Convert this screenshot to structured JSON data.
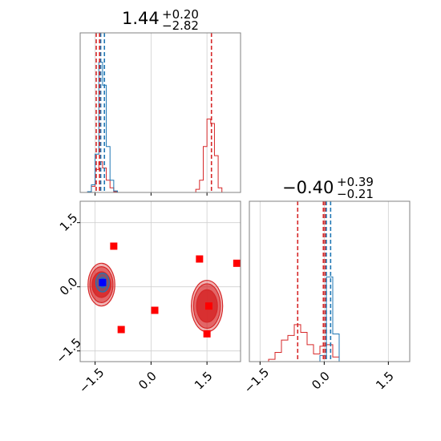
{
  "chart_data": {
    "type": "corner",
    "parameters": [
      {
        "title": {
          "median": "1.44",
          "upper": "+0.20",
          "lower": "−2.82"
        },
        "range": [
          -1.9,
          2.4
        ],
        "ticks": [
          {
            "value": -1.5,
            "label": "−1.5"
          },
          {
            "value": 0.0,
            "label": "0.0"
          },
          {
            "value": 1.5,
            "label": "1.5"
          }
        ]
      },
      {
        "title": {
          "median": "−0.40",
          "upper": "+0.39",
          "lower": "−0.21"
        },
        "range": [
          -1.75,
          2.0
        ],
        "ticks": [
          {
            "value": -1.5,
            "label": "−1.5"
          },
          {
            "value": 0.0,
            "label": "0.0"
          },
          {
            "value": 1.5,
            "label": "1.5"
          }
        ]
      }
    ],
    "series": [
      {
        "color": "#1f77b4"
      },
      {
        "color": "#d62728"
      }
    ],
    "marginal_x": {
      "bins": [
        -1.9,
        -1.8,
        -1.7,
        -1.6,
        -1.5,
        -1.4,
        -1.3,
        -1.2,
        -1.1,
        -1.0,
        -0.9,
        -0.8,
        -0.7,
        -0.6,
        -0.5,
        -0.4,
        -0.3,
        -0.2,
        -0.1,
        0.0,
        0.1,
        0.2,
        0.3,
        0.4,
        0.5,
        0.6,
        0.7,
        0.8,
        0.9,
        1.0,
        1.1,
        1.2,
        1.3,
        1.4,
        1.5,
        1.6,
        1.7,
        1.8,
        1.9,
        2.0,
        2.1,
        2.2,
        2.3,
        2.4
      ],
      "blue": [
        0,
        0,
        0.005,
        0.05,
        0.25,
        0.85,
        0.7,
        0.3,
        0.08,
        0.01,
        0,
        0,
        0,
        0,
        0,
        0,
        0,
        0,
        0,
        0,
        0,
        0,
        0,
        0,
        0,
        0,
        0,
        0,
        0,
        0,
        0,
        0,
        0,
        0,
        0,
        0,
        0,
        0,
        0,
        0,
        0,
        0,
        0
      ],
      "red": [
        0,
        0,
        0.005,
        0.04,
        0.15,
        0.2,
        0.16,
        0.08,
        0.03,
        0.005,
        0,
        0,
        0,
        0,
        0,
        0,
        0,
        0,
        0,
        0,
        0,
        0,
        0,
        0,
        0,
        0,
        0,
        0,
        0,
        0,
        0,
        0.02,
        0.08,
        0.3,
        0.48,
        0.45,
        0.24,
        0.03,
        0,
        0,
        0,
        0,
        0
      ],
      "quantiles_blue": [
        -1.35,
        -1.25
      ],
      "quantiles_red": [
        -1.47,
        -1.38,
        1.62
      ]
    },
    "marginal_y": {
      "bins": [
        -1.75,
        -1.6,
        -1.45,
        -1.3,
        -1.15,
        -1.0,
        -0.85,
        -0.7,
        -0.55,
        -0.4,
        -0.25,
        -0.1,
        0.05,
        0.2,
        0.35,
        0.5,
        0.65,
        0.8,
        0.95,
        1.1,
        1.25,
        1.4,
        1.55,
        1.7,
        1.85,
        2.0
      ],
      "blue": [
        0,
        0,
        0,
        0,
        0,
        0,
        0,
        0,
        0,
        0,
        0,
        0.04,
        0.55,
        0.18,
        0,
        0,
        0,
        0,
        0,
        0,
        0,
        0,
        0,
        0,
        0
      ],
      "red": [
        0,
        0,
        0,
        0.015,
        0.06,
        0.14,
        0.17,
        0.24,
        0.19,
        0.11,
        0.05,
        0.1,
        0.11,
        0.03,
        0,
        0,
        0,
        0,
        0,
        0,
        0,
        0,
        0,
        0,
        0
      ],
      "quantiles_blue": [
        0.05,
        0.15
      ],
      "quantiles_red": [
        -0.62,
        -0.02,
        0.02
      ]
    },
    "joint": {
      "blue_mode": {
        "x": -1.3,
        "y": 0.1
      },
      "contours": [
        {
          "color": "#d62728",
          "cx": -1.33,
          "cy": 0.05,
          "rx": [
            0.36,
            0.31,
            0.25
          ],
          "ry": [
            0.5,
            0.42,
            0.3
          ]
        },
        {
          "color": "#d62728",
          "cx": 1.5,
          "cy": -0.45,
          "rx": [
            0.42,
            0.36,
            0.28
          ],
          "ry": [
            0.6,
            0.52,
            0.38
          ]
        }
      ],
      "markers": [
        {
          "x": -1.0,
          "y": 0.95
        },
        {
          "x": 1.3,
          "y": 0.65
        },
        {
          "x": 2.3,
          "y": 0.55
        },
        {
          "x": 0.1,
          "y": -0.55
        },
        {
          "x": -0.8,
          "y": -1.0
        },
        {
          "x": 1.5,
          "y": -1.1
        },
        {
          "x": 1.55,
          "y": -0.45
        },
        {
          "x": -1.3,
          "y": 0.1
        }
      ]
    },
    "grid": true
  }
}
